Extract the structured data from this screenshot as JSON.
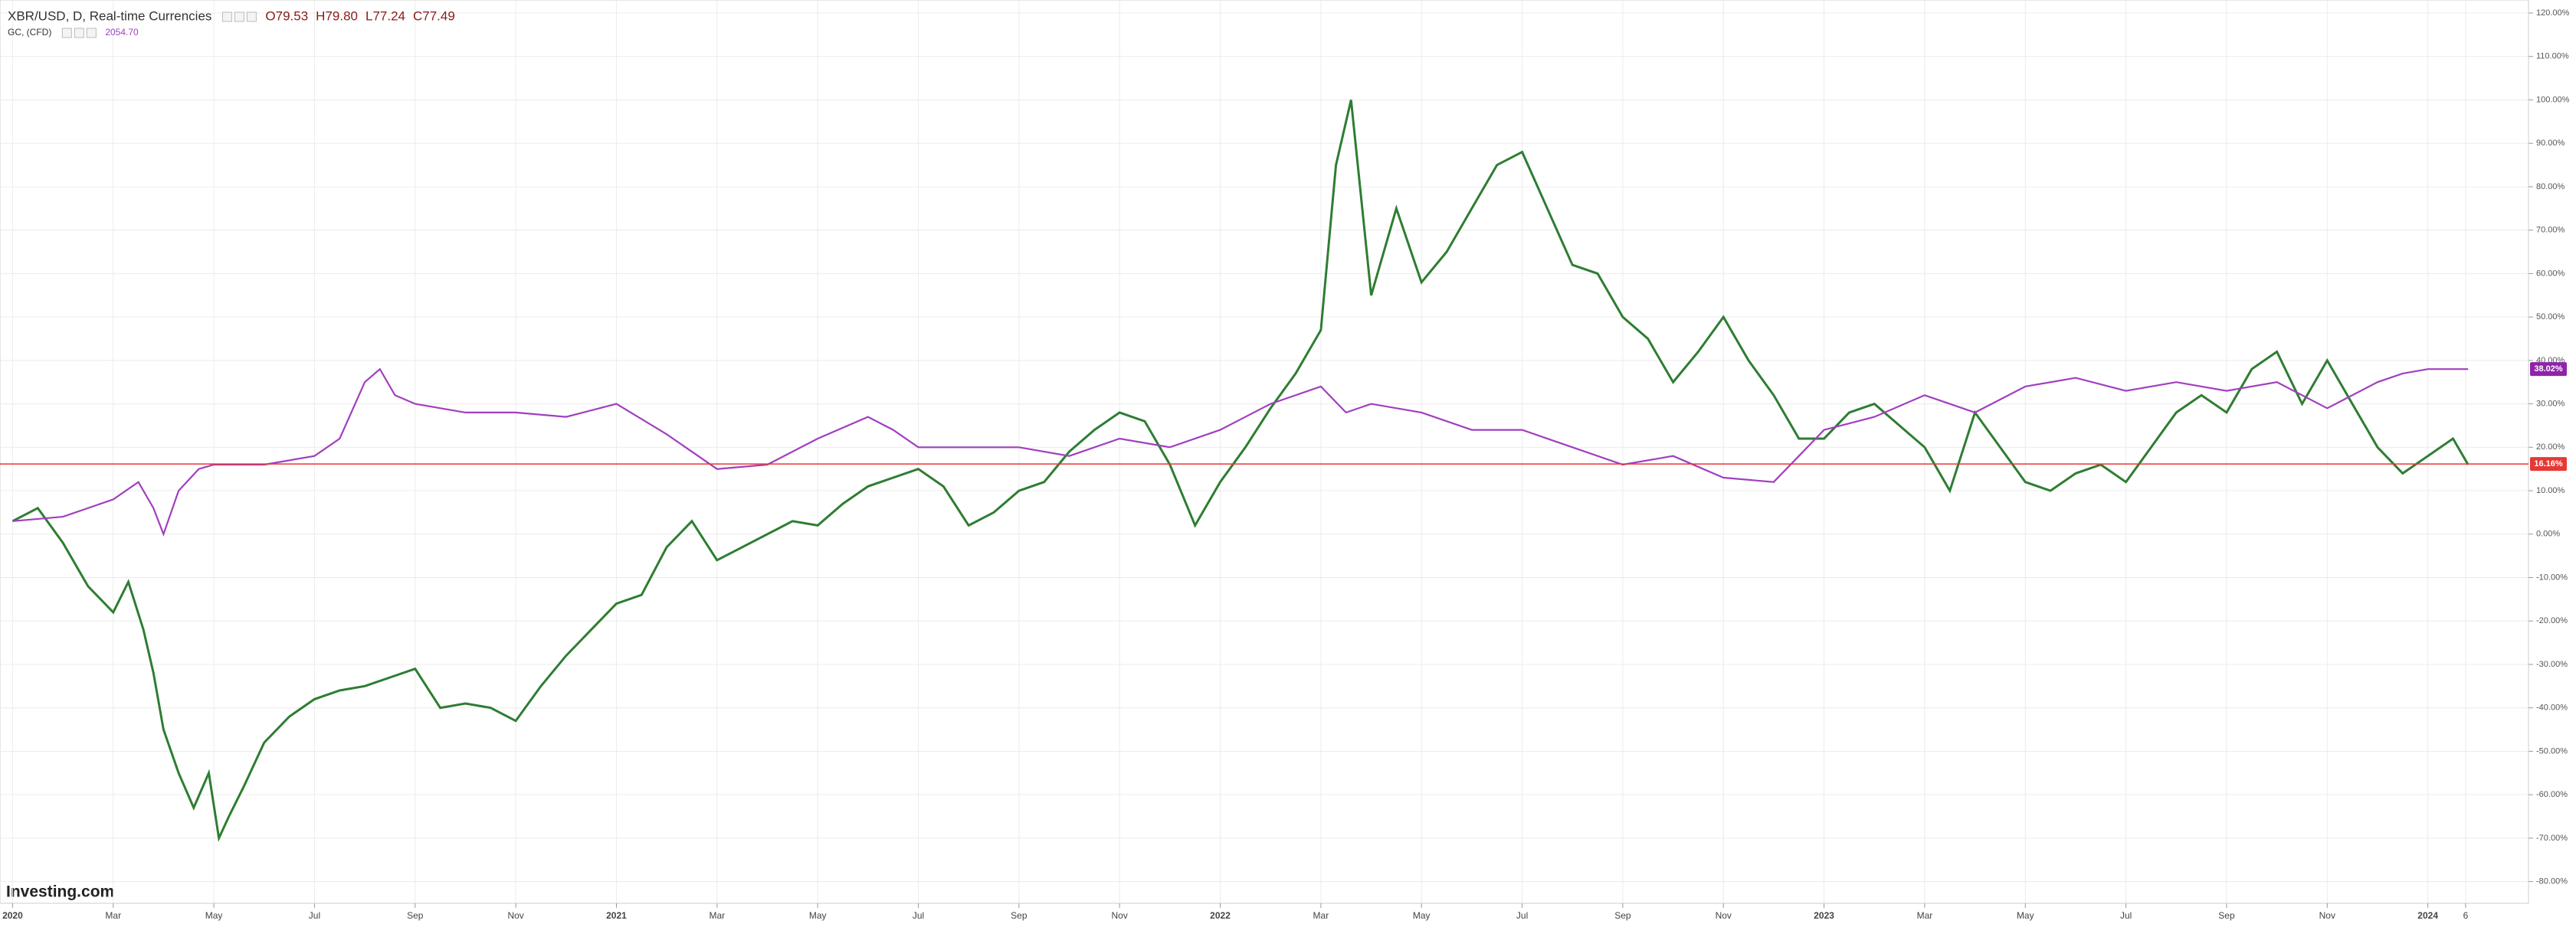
{
  "chart_data": {
    "type": "line",
    "watermark": "Investing.com",
    "grid": true,
    "ylim": [
      -85,
      123
    ],
    "xlim": [
      -0.25,
      50
    ],
    "yticks": [
      {
        "value": -80,
        "label": "-80.00%"
      },
      {
        "value": -70,
        "label": "-70.00%"
      },
      {
        "value": -60,
        "label": "-60.00%"
      },
      {
        "value": -50,
        "label": "-50.00%"
      },
      {
        "value": -40,
        "label": "-40.00%"
      },
      {
        "value": -30,
        "label": "-30.00%"
      },
      {
        "value": -20,
        "label": "-20.00%"
      },
      {
        "value": -10,
        "label": "-10.00%"
      },
      {
        "value": 0,
        "label": "0.00%"
      },
      {
        "value": 10,
        "label": "10.00%"
      },
      {
        "value": 20,
        "label": "20.00%"
      },
      {
        "value": 30,
        "label": "30.00%"
      },
      {
        "value": 40,
        "label": "40.00%"
      },
      {
        "value": 50,
        "label": "50.00%"
      },
      {
        "value": 60,
        "label": "60.00%"
      },
      {
        "value": 70,
        "label": "70.00%"
      },
      {
        "value": 80,
        "label": "80.00%"
      },
      {
        "value": 90,
        "label": "90.00%"
      },
      {
        "value": 100,
        "label": "100.00%"
      },
      {
        "value": 110,
        "label": "110.00%"
      },
      {
        "value": 120,
        "label": "120.00%"
      }
    ],
    "xticks": [
      {
        "value": 0,
        "label": "2020"
      },
      {
        "value": 2,
        "label": "Mar"
      },
      {
        "value": 4,
        "label": "May"
      },
      {
        "value": 6,
        "label": "Jul"
      },
      {
        "value": 8,
        "label": "Sep"
      },
      {
        "value": 10,
        "label": "Nov"
      },
      {
        "value": 12,
        "label": "2021"
      },
      {
        "value": 14,
        "label": "Mar"
      },
      {
        "value": 16,
        "label": "May"
      },
      {
        "value": 18,
        "label": "Jul"
      },
      {
        "value": 20,
        "label": "Sep"
      },
      {
        "value": 22,
        "label": "Nov"
      },
      {
        "value": 24,
        "label": "2022"
      },
      {
        "value": 26,
        "label": "Mar"
      },
      {
        "value": 28,
        "label": "May"
      },
      {
        "value": 30,
        "label": "Jul"
      },
      {
        "value": 32,
        "label": "Sep"
      },
      {
        "value": 34,
        "label": "Nov"
      },
      {
        "value": 36,
        "label": "2023"
      },
      {
        "value": 38,
        "label": "Mar"
      },
      {
        "value": 40,
        "label": "May"
      },
      {
        "value": 42,
        "label": "Jul"
      },
      {
        "value": 44,
        "label": "Sep"
      },
      {
        "value": 46,
        "label": "Nov"
      },
      {
        "value": 48,
        "label": "2024"
      },
      {
        "value": 48.75,
        "label": "6"
      }
    ],
    "series": [
      {
        "name": "XBR/USD, D, Real-time Currencies",
        "color": "#2e7d32",
        "quote": [
          "O79.53",
          "H79.80",
          "L77.24",
          "C77.49"
        ],
        "quote_color": "#8b1a1a",
        "last": {
          "value": 16.16,
          "label": "16.16%"
        },
        "last_color": "#e53935",
        "x": [
          0,
          0.5,
          1,
          1.5,
          2,
          2.3,
          2.6,
          2.8,
          3,
          3.3,
          3.6,
          3.9,
          4.1,
          4.3,
          4.6,
          5,
          5.5,
          6,
          6.5,
          7,
          7.5,
          8,
          8.5,
          9,
          9.5,
          10,
          10.5,
          11,
          11.5,
          12,
          12.5,
          13,
          13.5,
          14,
          14.5,
          15,
          15.5,
          16,
          16.5,
          17,
          17.5,
          18,
          18.5,
          19,
          19.5,
          20,
          20.5,
          21,
          21.5,
          22,
          22.5,
          23,
          23.5,
          24,
          24.5,
          25,
          25.5,
          26,
          26.3,
          26.6,
          27,
          27.5,
          28,
          28.5,
          29,
          29.5,
          30,
          30.5,
          31,
          31.5,
          32,
          32.5,
          33,
          33.5,
          34,
          34.5,
          35,
          35.5,
          36,
          36.5,
          37,
          37.5,
          38,
          38.5,
          39,
          39.5,
          40,
          40.5,
          41,
          41.5,
          42,
          42.5,
          43,
          43.5,
          44,
          44.5,
          45,
          45.5,
          46,
          46.5,
          47,
          47.5,
          48,
          48.5,
          48.8
        ],
        "values": [
          3,
          6,
          -2,
          -12,
          -18,
          -11,
          -22,
          -32,
          -45,
          -55,
          -63,
          -55,
          -70,
          -65,
          -58,
          -48,
          -42,
          -38,
          -36,
          -35,
          -33,
          -31,
          -40,
          -39,
          -40,
          -43,
          -35,
          -28,
          -22,
          -16,
          -14,
          -3,
          3,
          -6,
          -3,
          0,
          3,
          2,
          7,
          11,
          13,
          15,
          11,
          2,
          5,
          10,
          12,
          19,
          24,
          28,
          26,
          16,
          2,
          12,
          20,
          29,
          37,
          47,
          85,
          100,
          55,
          75,
          58,
          65,
          75,
          85,
          88,
          75,
          62,
          60,
          50,
          45,
          35,
          42,
          50,
          40,
          32,
          22,
          22,
          28,
          30,
          25,
          20,
          10,
          28,
          20,
          12,
          10,
          14,
          16,
          12,
          20,
          28,
          32,
          28,
          38,
          42,
          30,
          40,
          30,
          20,
          14,
          18,
          22,
          16
        ]
      },
      {
        "name": "GC, (CFD)",
        "color": "#a13fbf",
        "quote": [
          "2054.70"
        ],
        "quote_color": "#a13fbf",
        "last": {
          "value": 38.02,
          "label": "38.02%"
        },
        "last_color": "#8e24aa",
        "x": [
          0,
          1,
          2,
          2.5,
          2.8,
          3,
          3.3,
          3.7,
          4,
          5,
          6,
          6.5,
          7,
          7.3,
          7.6,
          8,
          9,
          10,
          11,
          12,
          13,
          14,
          15,
          16,
          17,
          17.5,
          18,
          19,
          20,
          21,
          22,
          23,
          24,
          25,
          26,
          26.5,
          27,
          28,
          29,
          30,
          31,
          32,
          33,
          34,
          35,
          35.5,
          36,
          37,
          38,
          39,
          40,
          41,
          42,
          43,
          44,
          45,
          46,
          47,
          47.5,
          48,
          48.8
        ],
        "values": [
          3,
          4,
          8,
          12,
          6,
          0,
          10,
          15,
          16,
          16,
          18,
          22,
          35,
          38,
          32,
          30,
          28,
          28,
          27,
          30,
          23,
          15,
          16,
          22,
          27,
          24,
          20,
          20,
          20,
          18,
          22,
          20,
          24,
          30,
          34,
          28,
          30,
          28,
          24,
          24,
          20,
          16,
          18,
          13,
          12,
          18,
          24,
          27,
          32,
          28,
          34,
          36,
          33,
          35,
          33,
          35,
          29,
          35,
          37,
          38,
          38
        ]
      }
    ]
  }
}
